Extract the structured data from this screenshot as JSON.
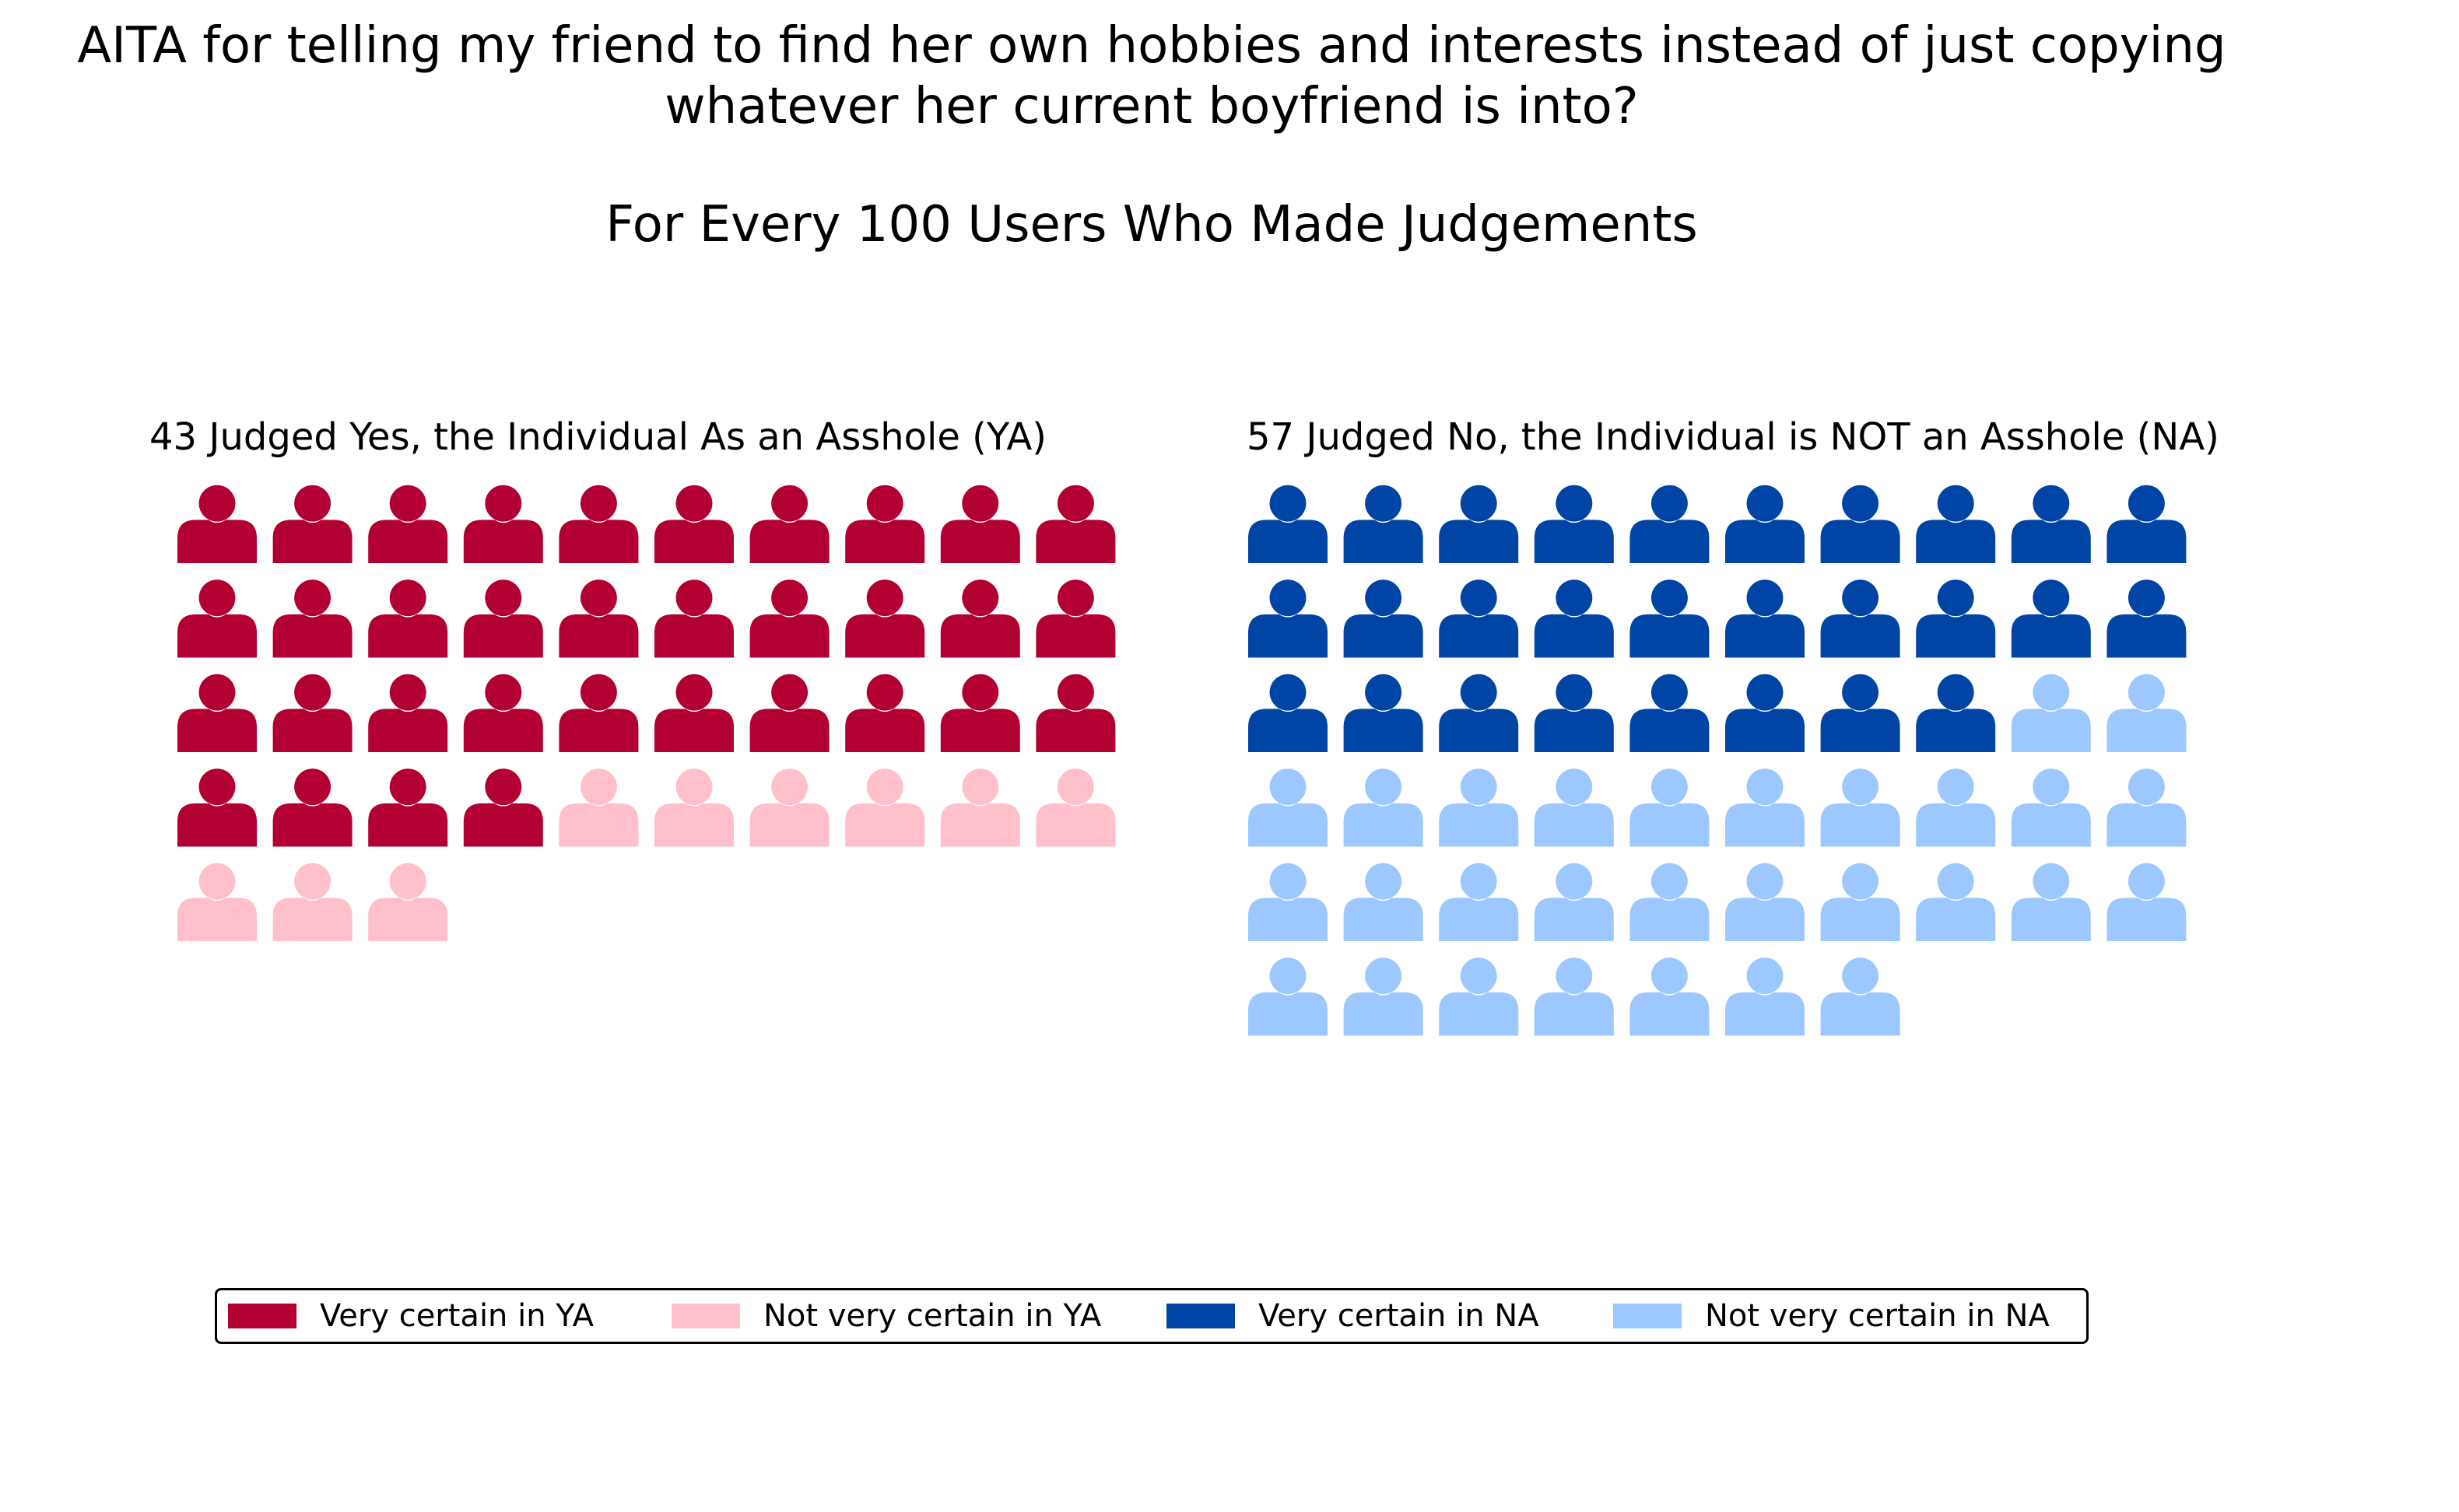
{
  "chart_data": {
    "type": "pictograph",
    "title": "AITA for telling my friend to find her own hobbies and interests instead of just copying whatever her current boyfriend is into?",
    "title_lines": [
      "AITA for telling my friend to find her own hobbies and interests instead of just copying",
      "whatever her current boyfriend is into?"
    ],
    "subtitle": "For Every 100 Users Who Made Judgements",
    "icons_per_row": 10,
    "panels": [
      {
        "id": "ya",
        "title": "43 Judged Yes, the Individual As an Asshole (YA)",
        "total": 43,
        "series": [
          {
            "name": "Very certain in YA",
            "value": 34,
            "color": "#b30033"
          },
          {
            "name": "Not very certain in YA",
            "value": 9,
            "color": "#ffc0cb"
          }
        ]
      },
      {
        "id": "na",
        "title": "57 Judged No, the Individual is NOT an Asshole (NA)",
        "total": 57,
        "series": [
          {
            "name": "Very certain in NA",
            "value": 28,
            "color": "#0044a6"
          },
          {
            "name": "Not very certain in NA",
            "value": 29,
            "color": "#9dc8ff"
          }
        ]
      }
    ],
    "legend": {
      "placement": "bottom-center",
      "entries": [
        {
          "label": "Very certain in YA",
          "color": "#b30033"
        },
        {
          "label": "Not very certain in YA",
          "color": "#ffc0cb"
        },
        {
          "label": "Very certain in NA",
          "color": "#0044a6"
        },
        {
          "label": "Not very certain in NA",
          "color": "#9dc8ff"
        }
      ]
    },
    "icon": "person-icon",
    "grid": false
  }
}
